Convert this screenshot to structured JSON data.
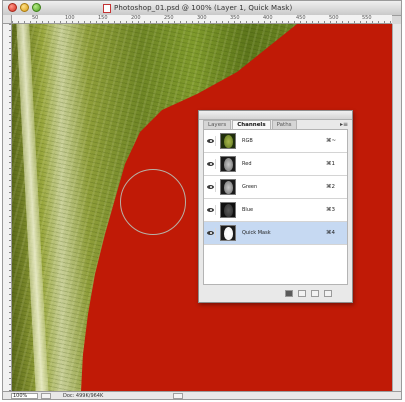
{
  "window": {
    "title": "Photoshop_01.psd @ 100% (Layer 1, Quick Mask)",
    "ruler_labels": [
      "50",
      "100",
      "150",
      "200",
      "250",
      "300",
      "350",
      "400",
      "450",
      "500",
      "550"
    ]
  },
  "status_bar": {
    "zoom": "100%",
    "doc_info": "Doc: 499K/964K"
  },
  "channels_panel": {
    "tabs": [
      {
        "label": "Layers",
        "active": false
      },
      {
        "label": "Channels",
        "active": true
      },
      {
        "label": "Paths",
        "active": false
      }
    ],
    "menu_icon": "panel-menu-icon",
    "channels": [
      {
        "name": "RGB",
        "shortcut": "⌘~",
        "thumb": "color",
        "selected": false
      },
      {
        "name": "Red",
        "shortcut": "⌘1",
        "thumb": "gray",
        "selected": false
      },
      {
        "name": "Green",
        "shortcut": "⌘2",
        "thumb": "gray",
        "selected": false
      },
      {
        "name": "Blue",
        "shortcut": "⌘3",
        "thumb": "dark",
        "selected": false
      },
      {
        "name": "Quick Mask",
        "shortcut": "⌘4",
        "thumb": "mask",
        "selected": true
      }
    ],
    "footer_icons": [
      "load-channel-as-selection-icon",
      "save-selection-as-channel-icon",
      "new-channel-icon",
      "delete-channel-icon"
    ]
  },
  "colors": {
    "quick_mask_overlay": "#c01a06",
    "selected_row": "#c6d9f2"
  }
}
